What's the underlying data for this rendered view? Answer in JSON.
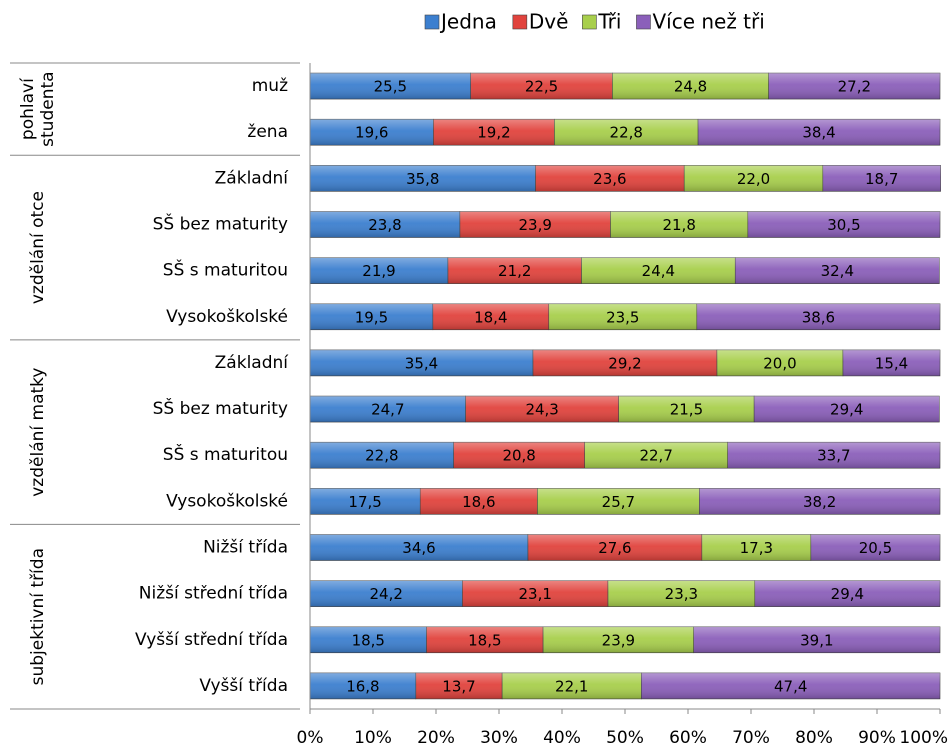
{
  "chart_data": {
    "type": "stacked_bar_100",
    "orientation": "horizontal",
    "groups": [
      {
        "label": [
          "pohlaví",
          "studenta"
        ],
        "categories": [
          "muž",
          "žena"
        ]
      },
      {
        "label": [
          "vzdělání otce"
        ],
        "categories": [
          "Základní",
          "SŠ bez maturity",
          "SŠ s maturitou",
          "Vysokoškolské"
        ]
      },
      {
        "label": [
          "vzdělání matky"
        ],
        "categories": [
          "Základní",
          "SŠ bez maturity",
          "SŠ s maturitou",
          "Vysokoškolské"
        ]
      },
      {
        "label": [
          "subjektivní třída"
        ],
        "categories": [
          "Nižší třída",
          "Nižší střední třída",
          "Vyšší střední třída",
          "Vyšší třída"
        ]
      }
    ],
    "series": [
      {
        "name": "Jedna",
        "color": "#3c7fcf",
        "values": [
          25.5,
          19.6,
          35.8,
          23.8,
          21.9,
          19.5,
          35.4,
          24.7,
          22.8,
          17.5,
          34.6,
          24.2,
          18.5,
          16.8
        ],
        "value_labels": [
          "25,5",
          "19,6",
          "35,8",
          "23,8",
          "21,9",
          "19,5",
          "35,4",
          "24,7",
          "22,8",
          "17,5",
          "34,6",
          "24,2",
          "18,5",
          "16,8"
        ]
      },
      {
        "name": "Dvě",
        "color": "#e1433d",
        "values": [
          22.5,
          19.2,
          23.6,
          23.9,
          21.2,
          18.4,
          29.2,
          24.3,
          20.8,
          18.6,
          27.6,
          23.1,
          18.5,
          13.7
        ],
        "value_labels": [
          "22,5",
          "19,2",
          "23,6",
          "23,9",
          "21,2",
          "18,4",
          "29,2",
          "24,3",
          "20,8",
          "18,6",
          "27,6",
          "23,1",
          "18,5",
          "13,7"
        ]
      },
      {
        "name": "Tři",
        "color": "#a8cf4c",
        "values": [
          24.8,
          22.8,
          22.0,
          21.8,
          24.4,
          23.5,
          20.0,
          21.5,
          22.7,
          25.7,
          17.3,
          23.3,
          23.9,
          22.1
        ],
        "value_labels": [
          "24,8",
          "22,8",
          "22,0",
          "21,8",
          "24,4",
          "23,5",
          "20,0",
          "21,5",
          "22,7",
          "25,7",
          "17,3",
          "23,3",
          "23,9",
          "22,1"
        ]
      },
      {
        "name": "Více než tři",
        "color": "#8b5fba",
        "values": [
          27.2,
          38.4,
          18.7,
          30.5,
          32.4,
          38.6,
          15.4,
          29.4,
          33.7,
          38.2,
          20.5,
          29.4,
          39.1,
          47.4
        ],
        "value_labels": [
          "27,2",
          "38,4",
          "18,7",
          "30,5",
          "32,4",
          "38,6",
          "15,4",
          "29,4",
          "33,7",
          "38,2",
          "20,5",
          "29,4",
          "39,1",
          "47,4"
        ]
      }
    ],
    "xlim": [
      0,
      100
    ],
    "xticks": [
      {
        "value": 0,
        "label": "0%"
      },
      {
        "value": 10,
        "label": "10%"
      },
      {
        "value": 20,
        "label": "20%"
      },
      {
        "value": 30,
        "label": "30%"
      },
      {
        "value": 40,
        "label": "40%"
      },
      {
        "value": 50,
        "label": "50%"
      },
      {
        "value": 60,
        "label": "60%"
      },
      {
        "value": 70,
        "label": "70%"
      },
      {
        "value": 80,
        "label": "80%"
      },
      {
        "value": 90,
        "label": "90%"
      },
      {
        "value": 100,
        "label": "100%"
      }
    ],
    "legend": "top",
    "grid": false
  }
}
